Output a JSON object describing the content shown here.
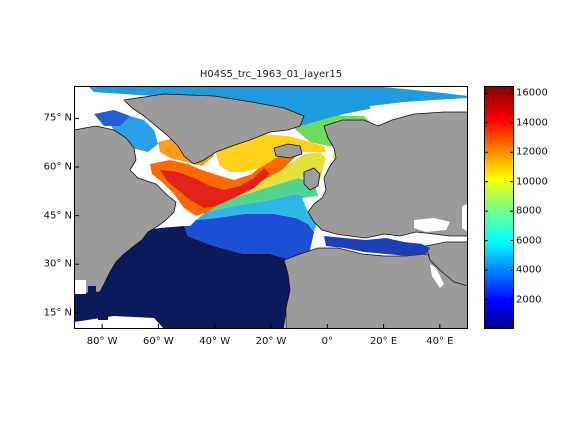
{
  "title": "H04S5_trc_1963_01_layer15",
  "map": {
    "lat_ticks": [
      {
        "label": "75° N",
        "value": 75
      },
      {
        "label": "60° N",
        "value": 60
      },
      {
        "label": "45° N",
        "value": 45
      },
      {
        "label": "30° N",
        "value": 30
      },
      {
        "label": "15° N",
        "value": 15
      }
    ],
    "lon_ticks": [
      {
        "label": "80° W",
        "value": -80
      },
      {
        "label": "60° W",
        "value": -60
      },
      {
        "label": "40° W",
        "value": -40
      },
      {
        "label": "20° W",
        "value": -20
      },
      {
        "label": "0°",
        "value": 0
      },
      {
        "label": "20° E",
        "value": 20
      },
      {
        "label": "40° E",
        "value": 40
      }
    ],
    "lon_range": [
      -90,
      50
    ],
    "lat_range": [
      10,
      85
    ],
    "land_color": "#9b9b9b",
    "missing_color": "#ffffff"
  },
  "colorbar": {
    "colormap": "jet",
    "range": [
      0,
      16500
    ],
    "ticks": [
      {
        "label": "16000",
        "value": 16000
      },
      {
        "label": "14000",
        "value": 14000
      },
      {
        "label": "12000",
        "value": 12000
      },
      {
        "label": "10000",
        "value": 10000
      },
      {
        "label": "8000",
        "value": 8000
      },
      {
        "label": "6000",
        "value": 6000
      },
      {
        "label": "4000",
        "value": 4000
      },
      {
        "label": "2000",
        "value": 2000
      }
    ]
  }
}
